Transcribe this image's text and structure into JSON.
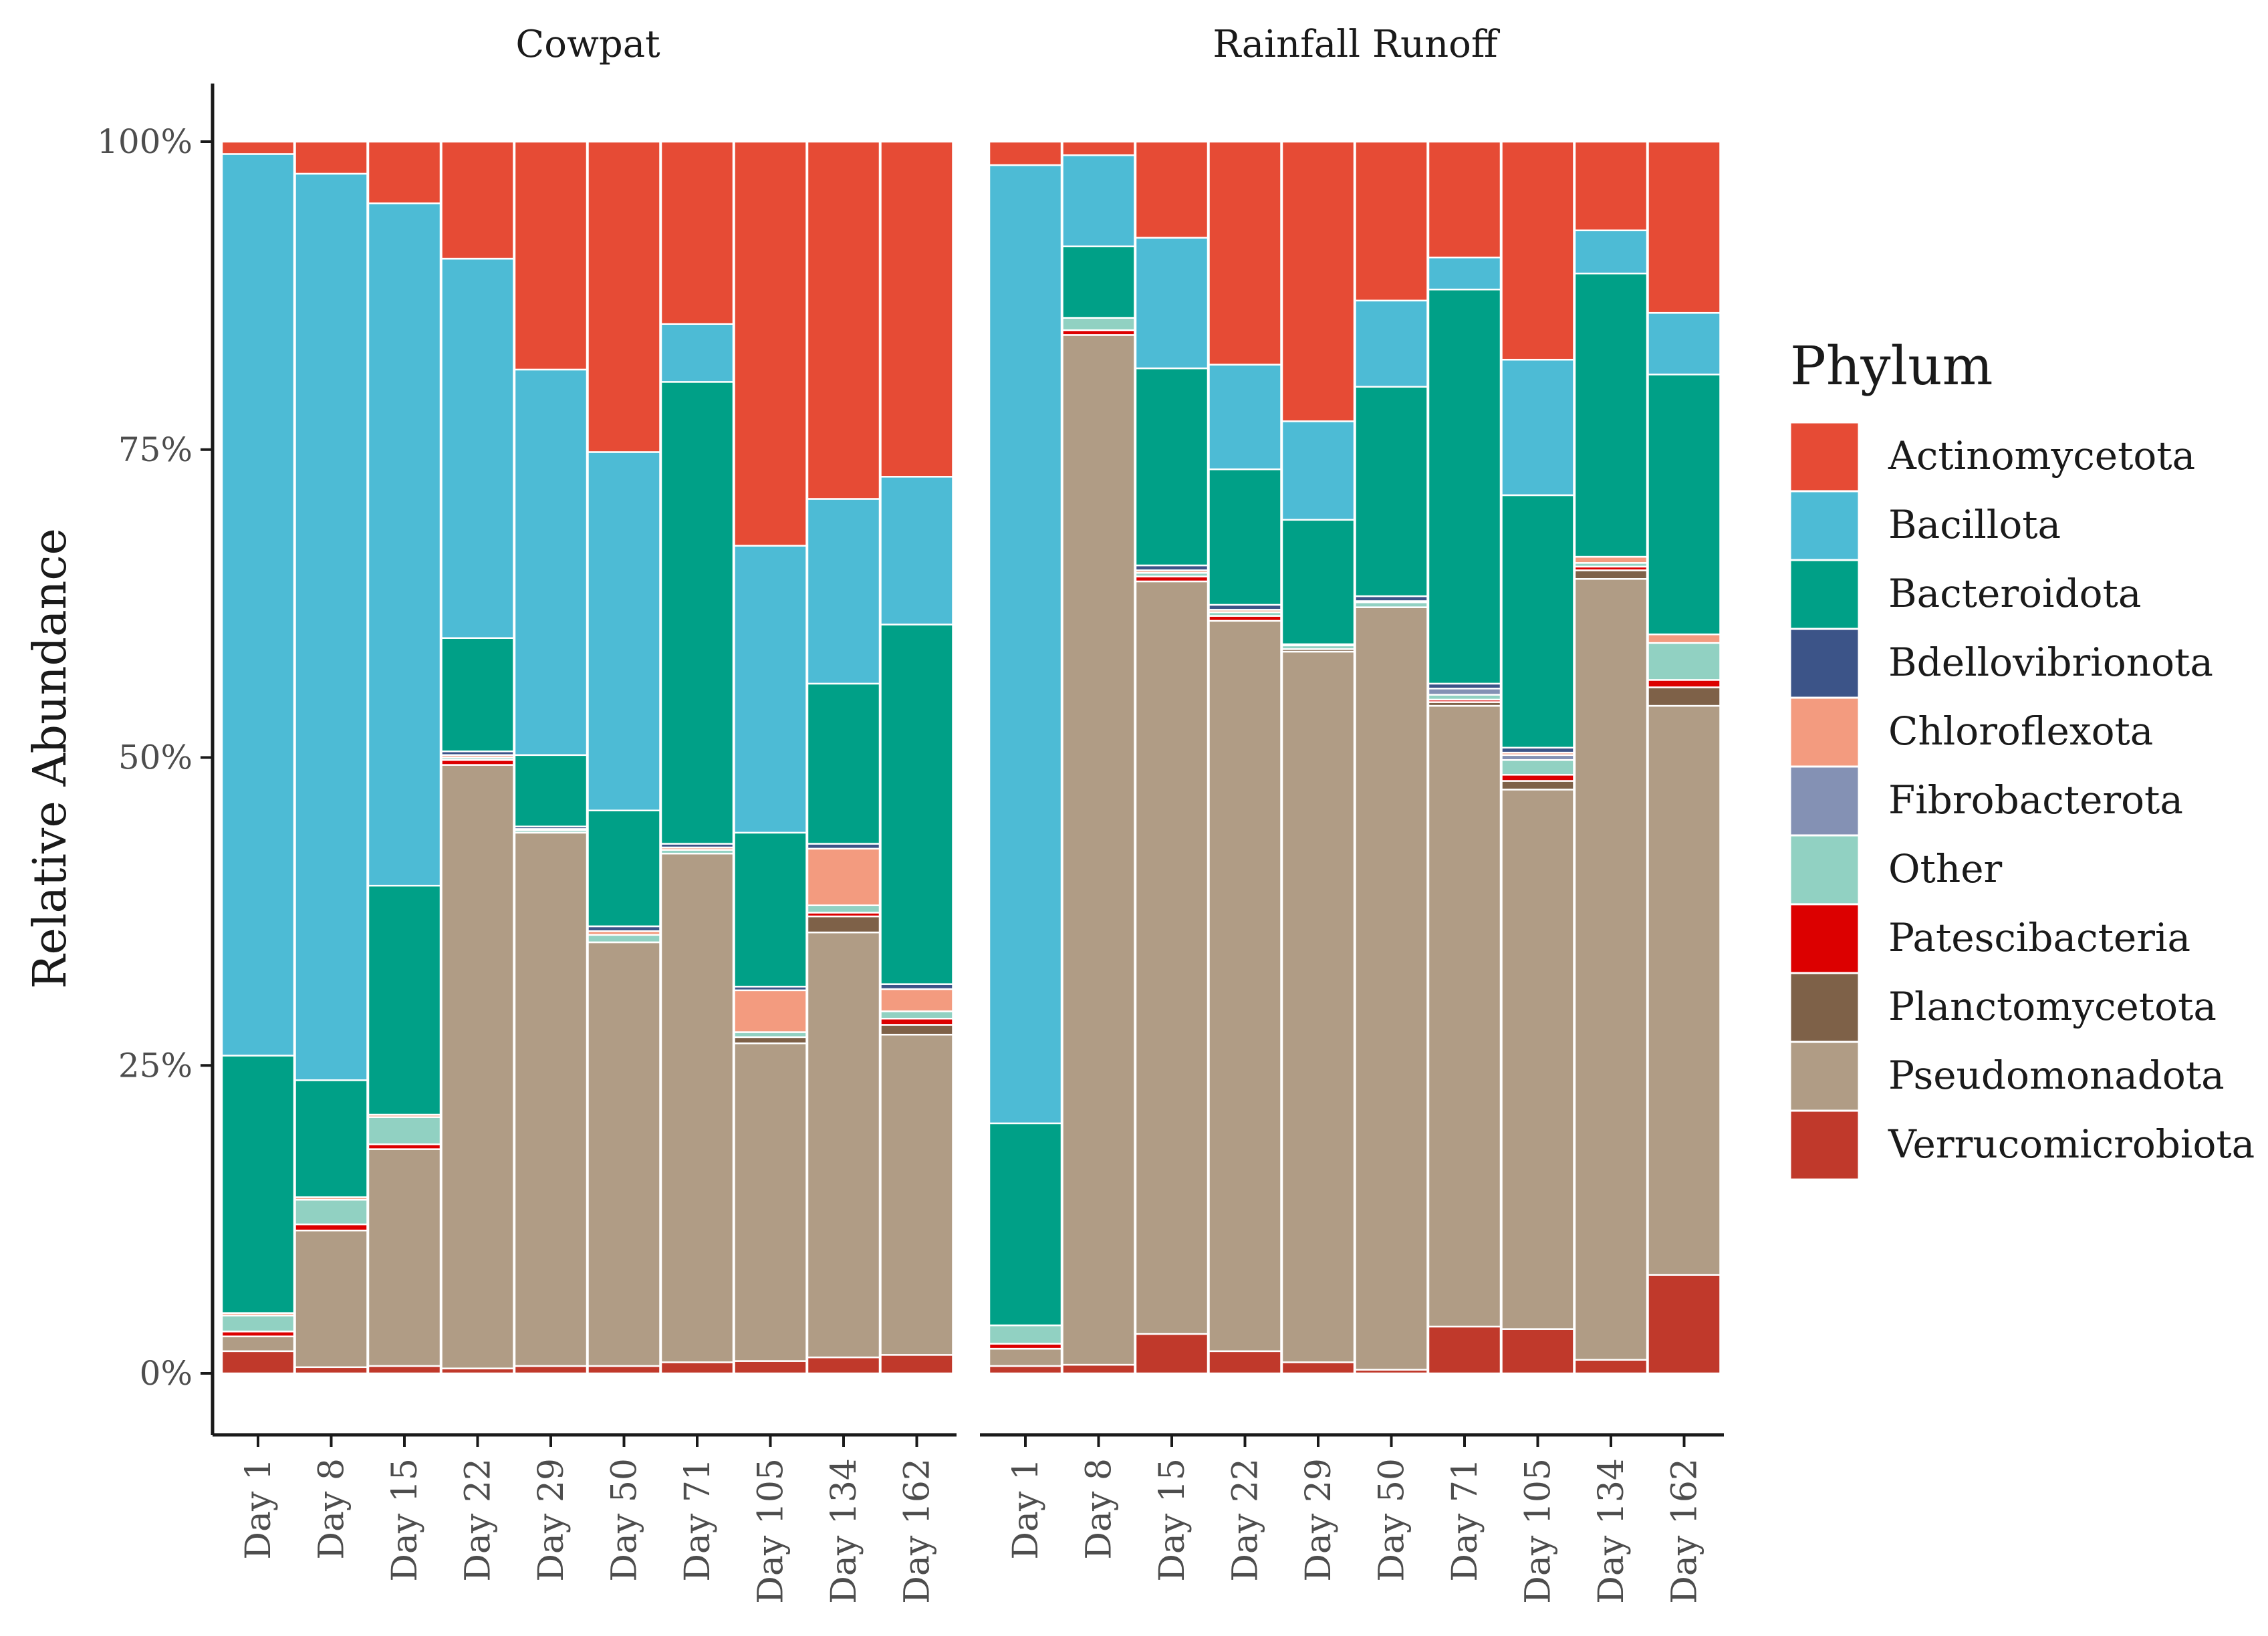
{
  "chart_data": {
    "type": "stacked-bar",
    "ylabel": "Relative Abundance",
    "ylim": [
      0,
      1
    ],
    "yticks": [
      "0%",
      "25%",
      "50%",
      "75%",
      "100%"
    ],
    "legend_title": "Phylum",
    "legend_position": "right",
    "categories": [
      "Day 1",
      "Day 8",
      "Day 15",
      "Day 22",
      "Day 29",
      "Day 50",
      "Day 71",
      "Day 105",
      "Day 134",
      "Day 162"
    ],
    "phyla": [
      {
        "name": "Actinomycetota",
        "color": "#E64B35"
      },
      {
        "name": "Bacillota",
        "color": "#4DBBD5"
      },
      {
        "name": "Bacteroidota",
        "color": "#00A087"
      },
      {
        "name": "Bdellovibrionota",
        "color": "#3C5488"
      },
      {
        "name": "Chloroflexota",
        "color": "#F39B7F"
      },
      {
        "name": "Fibrobacterota",
        "color": "#8491B4"
      },
      {
        "name": "Other",
        "color": "#91D1C2"
      },
      {
        "name": "Patescibacteria",
        "color": "#DC0000"
      },
      {
        "name": "Planctomycetota",
        "color": "#7E6148"
      },
      {
        "name": "Pseudomonadota",
        "color": "#B09C85"
      },
      {
        "name": "Verrucomicrobiota",
        "color": "#C0392B"
      }
    ],
    "stack_order_bottom_to_top": [
      "Verrucomicrobiota",
      "Pseudomonadota",
      "Planctomycetota",
      "Patescibacteria",
      "Other",
      "Fibrobacterota",
      "Chloroflexota",
      "Bdellovibrionota",
      "Bacteroidota",
      "Bacillota",
      "Actinomycetota"
    ],
    "panels": [
      {
        "title": "Cowpat",
        "values": {
          "Verrucomicrobiota": [
            0.018,
            0.005,
            0.006,
            0.004,
            0.006,
            0.006,
            0.009,
            0.01,
            0.013,
            0.015
          ],
          "Pseudomonadota": [
            0.012,
            0.111,
            0.176,
            0.49,
            0.433,
            0.344,
            0.413,
            0.258,
            0.345,
            0.26
          ],
          "Planctomycetota": [
            0.0,
            0.0,
            0.0,
            0.0,
            0.0,
            0.0,
            0.0,
            0.005,
            0.013,
            0.008
          ],
          "Patescibacteria": [
            0.004,
            0.005,
            0.004,
            0.004,
            0.0,
            0.0,
            0.0,
            0.0,
            0.003,
            0.005
          ],
          "Other": [
            0.013,
            0.02,
            0.022,
            0.002,
            0.002,
            0.006,
            0.003,
            0.004,
            0.006,
            0.006
          ],
          "Fibrobacterota": [
            0.0,
            0.0,
            0.0,
            0.0,
            0.0,
            0.0,
            0.0,
            0.0,
            0.0,
            0.0
          ],
          "Chloroflexota": [
            0.002,
            0.002,
            0.002,
            0.002,
            0.001,
            0.003,
            0.002,
            0.034,
            0.046,
            0.018
          ],
          "Bdellovibrionota": [
            0.0,
            0.0,
            0.0,
            0.003,
            0.002,
            0.004,
            0.003,
            0.003,
            0.004,
            0.004
          ],
          "Bacteroidota": [
            0.209,
            0.095,
            0.186,
            0.092,
            0.058,
            0.094,
            0.375,
            0.125,
            0.13,
            0.292
          ],
          "Bacillota": [
            0.732,
            0.736,
            0.554,
            0.308,
            0.313,
            0.291,
            0.047,
            0.233,
            0.15,
            0.12
          ],
          "Actinomycetota": [
            0.01,
            0.026,
            0.05,
            0.095,
            0.185,
            0.252,
            0.148,
            0.328,
            0.29,
            0.272
          ]
        }
      },
      {
        "title": "Rainfall Runoff",
        "values": {
          "Verrucomicrobiota": [
            0.006,
            0.007,
            0.032,
            0.018,
            0.009,
            0.003,
            0.038,
            0.036,
            0.011,
            0.08
          ],
          "Pseudomonadota": [
            0.014,
            0.836,
            0.611,
            0.593,
            0.577,
            0.619,
            0.504,
            0.438,
            0.634,
            0.462
          ],
          "Planctomycetota": [
            0.0,
            0.0,
            0.0,
            0.0,
            0.002,
            0.0,
            0.003,
            0.007,
            0.007,
            0.015
          ],
          "Patescibacteria": [
            0.004,
            0.004,
            0.004,
            0.004,
            0.0,
            0.0,
            0.002,
            0.005,
            0.003,
            0.006
          ],
          "Other": [
            0.015,
            0.01,
            0.003,
            0.003,
            0.003,
            0.004,
            0.004,
            0.012,
            0.003,
            0.03
          ],
          "Fibrobacterota": [
            0.0,
            0.0,
            0.0,
            0.0,
            0.0,
            0.0,
            0.005,
            0.004,
            0.0,
            0.0
          ],
          "Chloroflexota": [
            0.0,
            0.0,
            0.002,
            0.002,
            0.001,
            0.001,
            0.0,
            0.002,
            0.005,
            0.007
          ],
          "Bdellovibrionota": [
            0.0,
            0.0,
            0.004,
            0.004,
            0.0,
            0.004,
            0.004,
            0.004,
            0.0,
            0.0
          ],
          "Bacteroidota": [
            0.164,
            0.058,
            0.16,
            0.11,
            0.101,
            0.17,
            0.32,
            0.205,
            0.23,
            0.211
          ],
          "Bacillota": [
            0.778,
            0.074,
            0.106,
            0.085,
            0.08,
            0.07,
            0.026,
            0.11,
            0.035,
            0.05
          ],
          "Actinomycetota": [
            0.019,
            0.011,
            0.078,
            0.181,
            0.227,
            0.129,
            0.094,
            0.177,
            0.072,
            0.139
          ]
        }
      }
    ]
  }
}
